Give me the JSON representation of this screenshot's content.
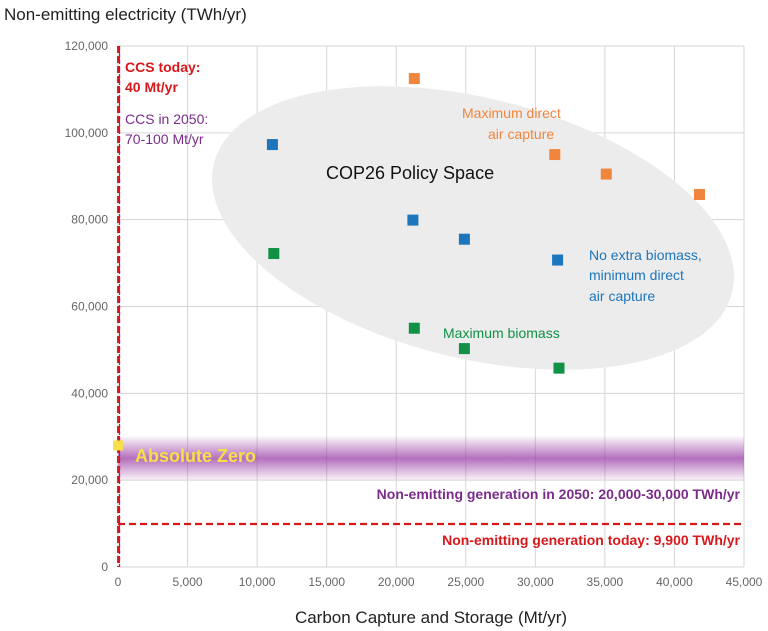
{
  "chart_data": {
    "type": "scatter",
    "ylabel": "Non-emitting electricity (TWh/yr)",
    "xlabel": "Carbon Capture and Storage (Mt/yr)",
    "xlim": [
      0,
      45000
    ],
    "ylim": [
      0,
      120000
    ],
    "x_ticks": [
      0,
      5000,
      10000,
      15000,
      20000,
      25000,
      30000,
      35000,
      40000,
      45000
    ],
    "y_ticks": [
      0,
      20000,
      40000,
      60000,
      80000,
      100000,
      120000
    ],
    "x_tick_labels": [
      "0",
      "5,000",
      "10,000",
      "15,000",
      "20,000",
      "25,000",
      "30,000",
      "35,000",
      "40,000",
      "45,000"
    ],
    "y_tick_labels": [
      "0",
      "20,000",
      "40,000",
      "60,000",
      "80,000",
      "100,000",
      "120,000"
    ],
    "grid": true,
    "series": [
      {
        "name": "Maximum direct air capture",
        "color": "#f0853d",
        "points": [
          [
            21300,
            112500
          ],
          [
            31400,
            95000
          ],
          [
            35100,
            90500
          ],
          [
            41800,
            85800
          ]
        ]
      },
      {
        "name": "No extra biomass, minimum direct air capture",
        "color": "#1d75bb",
        "points": [
          [
            11100,
            97300
          ],
          [
            21200,
            79900
          ],
          [
            24900,
            75500
          ],
          [
            31600,
            70700
          ]
        ]
      },
      {
        "name": "Maximum biomass",
        "color": "#109146",
        "points": [
          [
            11200,
            72200
          ],
          [
            21300,
            55000
          ],
          [
            24900,
            50300
          ],
          [
            31700,
            45800
          ]
        ]
      }
    ],
    "annotations": {
      "policy_space_label": "COP26 Policy Space",
      "ccs_today_line1": "CCS today:",
      "ccs_today_line2": "40 Mt/yr",
      "ccs_2050_line1": "CCS in 2050:",
      "ccs_2050_line2": "70-100 Mt/yr",
      "max_dac_line1": "Maximum direct",
      "max_dac_line2": "air capture",
      "no_biomass_line1": "No extra biomass,",
      "no_biomass_line2": "minimum direct",
      "no_biomass_line3": "air capture",
      "max_biomass": "Maximum biomass",
      "absolute_zero": "Absolute Zero",
      "generation_2050": "Non-emitting generation in 2050: 20,000-30,000 TWh/yr",
      "generation_today": "Non-emitting generation today: 9,900 TWh/yr"
    },
    "absolute_zero_point": [
      0,
      28000
    ],
    "generation_2050_band": [
      20000,
      30000
    ],
    "generation_today_level": 9900,
    "ccs_today_level": 40,
    "colors": {
      "ccs_today": "#d7191c",
      "ccs_2050": "#7b2c8a",
      "band": "#9b3fa6",
      "absolute_zero": "#f5e04a",
      "policy_space": "#ececec"
    }
  }
}
